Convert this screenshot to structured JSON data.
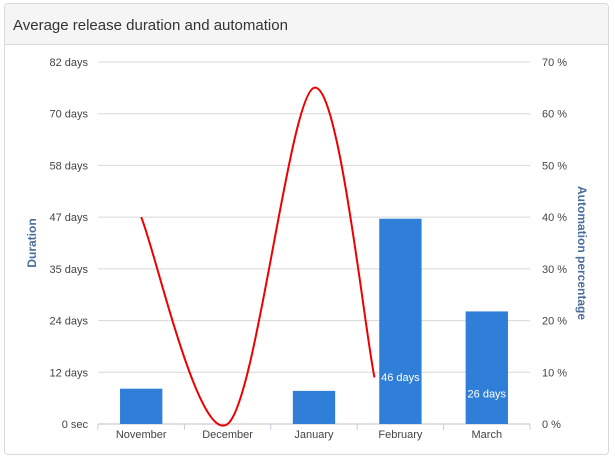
{
  "panel": {
    "title": "Average release duration and automation"
  },
  "chart_data": {
    "type": "bar",
    "categories": [
      "November",
      "December",
      "January",
      "February",
      "March"
    ],
    "series": [
      {
        "name": "Duration",
        "kind": "bar",
        "axis": "left",
        "values": [
          8,
          0,
          7.5,
          46.5,
          25.5
        ],
        "data_labels": [
          "",
          "",
          "",
          "46 days",
          "26 days"
        ],
        "color": "#2f7ed8"
      },
      {
        "name": "Automation percentage",
        "kind": "spline",
        "axis": "right",
        "values": [
          40,
          0,
          65,
          null,
          null
        ],
        "partial_end": {
          "x_index": 2.7,
          "value": 9
        },
        "color": "#ee0000"
      }
    ],
    "ylabel": "Duration",
    "y2label": "Automation percentage",
    "ylim": [
      0,
      82
    ],
    "y2lim": [
      0,
      70
    ],
    "yticks": [
      "0 sec",
      "12 days",
      "24 days",
      "35 days",
      "47 days",
      "58 days",
      "70 days",
      "82 days"
    ],
    "y2ticks": [
      "0 %",
      "10 %",
      "20 %",
      "30 %",
      "40 %",
      "50 %",
      "60 %",
      "70 %"
    ],
    "grid": true,
    "legend": "none"
  }
}
